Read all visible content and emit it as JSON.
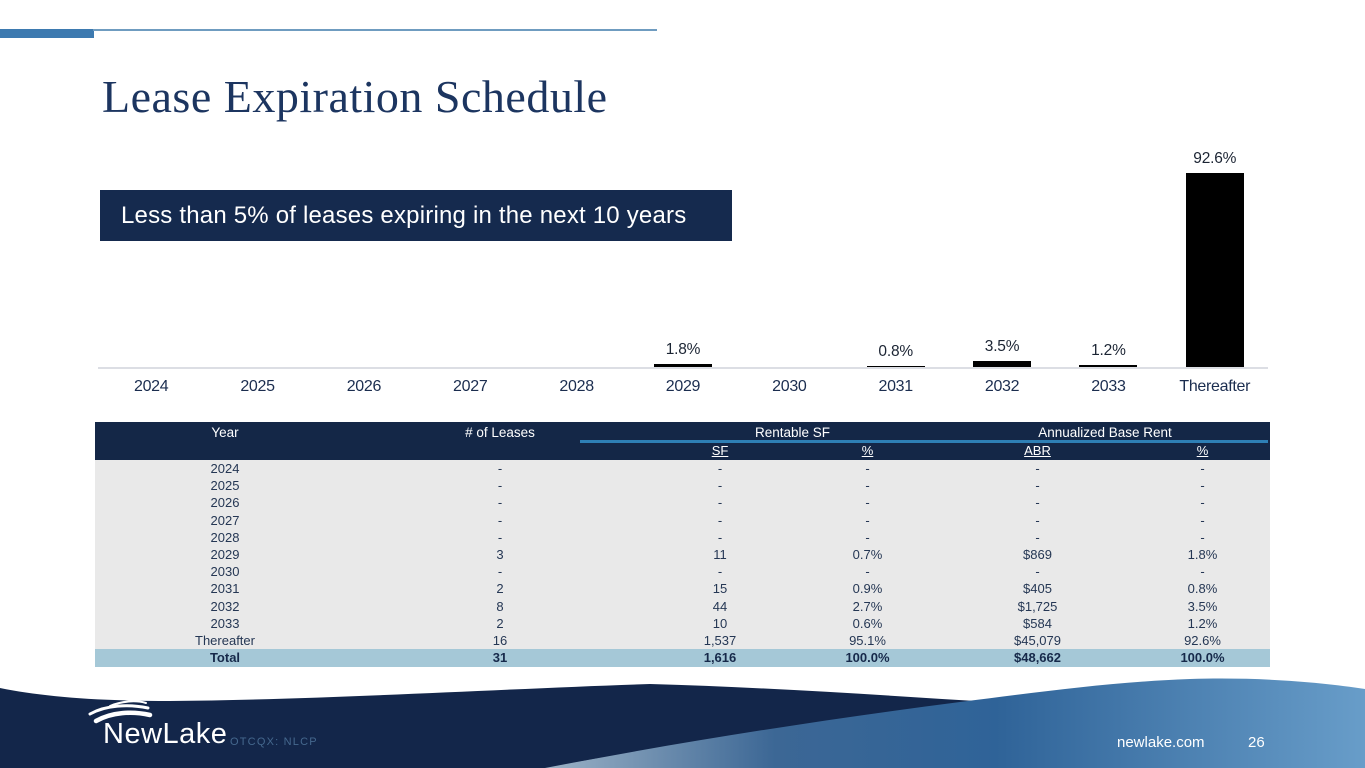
{
  "slide": {
    "title": "Lease Expiration Schedule",
    "callout": "Less than 5% of leases expiring in the next 10 years"
  },
  "chart_data": {
    "type": "bar",
    "categories": [
      "2024",
      "2025",
      "2026",
      "2027",
      "2028",
      "2029",
      "2030",
      "2031",
      "2032",
      "2033",
      "Thereafter"
    ],
    "values": [
      0,
      0,
      0,
      0,
      0,
      1.8,
      0,
      0.8,
      3.5,
      1.2,
      92.6
    ],
    "data_labels": [
      "",
      "",
      "",
      "",
      "",
      "1.8%",
      "",
      "0.8%",
      "3.5%",
      "1.2%",
      "92.6%"
    ],
    "title": "",
    "xlabel": "",
    "ylabel": "",
    "ylim": [
      0,
      100
    ],
    "grid": false,
    "legend": "none",
    "bar_color": "#000000",
    "baseline_color": "#dcdee4"
  },
  "table": {
    "col_headers": [
      "Year",
      "# of Leases"
    ],
    "group_headers": [
      {
        "label": "Rentable SF",
        "sub": [
          "SF",
          "%"
        ]
      },
      {
        "label": "Annualized Base Rent",
        "sub": [
          "ABR",
          "%"
        ]
      }
    ],
    "rows": [
      [
        "2024",
        "-",
        "-",
        "-",
        "-",
        "-"
      ],
      [
        "2025",
        "-",
        "-",
        "-",
        "-",
        "-"
      ],
      [
        "2026",
        "-",
        "-",
        "-",
        "-",
        "-"
      ],
      [
        "2027",
        "-",
        "-",
        "-",
        "-",
        "-"
      ],
      [
        "2028",
        "-",
        "-",
        "-",
        "-",
        "-"
      ],
      [
        "2029",
        "3",
        "11",
        "0.7%",
        "$869",
        "1.8%"
      ],
      [
        "2030",
        "-",
        "-",
        "-",
        "-",
        "-"
      ],
      [
        "2031",
        "2",
        "15",
        "0.9%",
        "$405",
        "0.8%"
      ],
      [
        "2032",
        "8",
        "44",
        "2.7%",
        "$1,725",
        "3.5%"
      ],
      [
        "2033",
        "2",
        "10",
        "0.6%",
        "$584",
        "1.2%"
      ],
      [
        "Thereafter",
        "16",
        "1,537",
        "95.1%",
        "$45,079",
        "92.6%"
      ]
    ],
    "total_row": [
      "Total",
      "31",
      "1,616",
      "100.0%",
      "$48,662",
      "100.0%"
    ]
  },
  "footer": {
    "brand": "NewLake",
    "ticker": "OTCQX: NLCP",
    "website": "newlake.com",
    "page_number": "26"
  },
  "colors": {
    "navy": "#152a4e",
    "accent_blue": "#3d7ab0",
    "header_underline": "#2e7fb5",
    "table_body_bg": "#e9e9e9",
    "total_row_bg": "#a5c8d7"
  }
}
